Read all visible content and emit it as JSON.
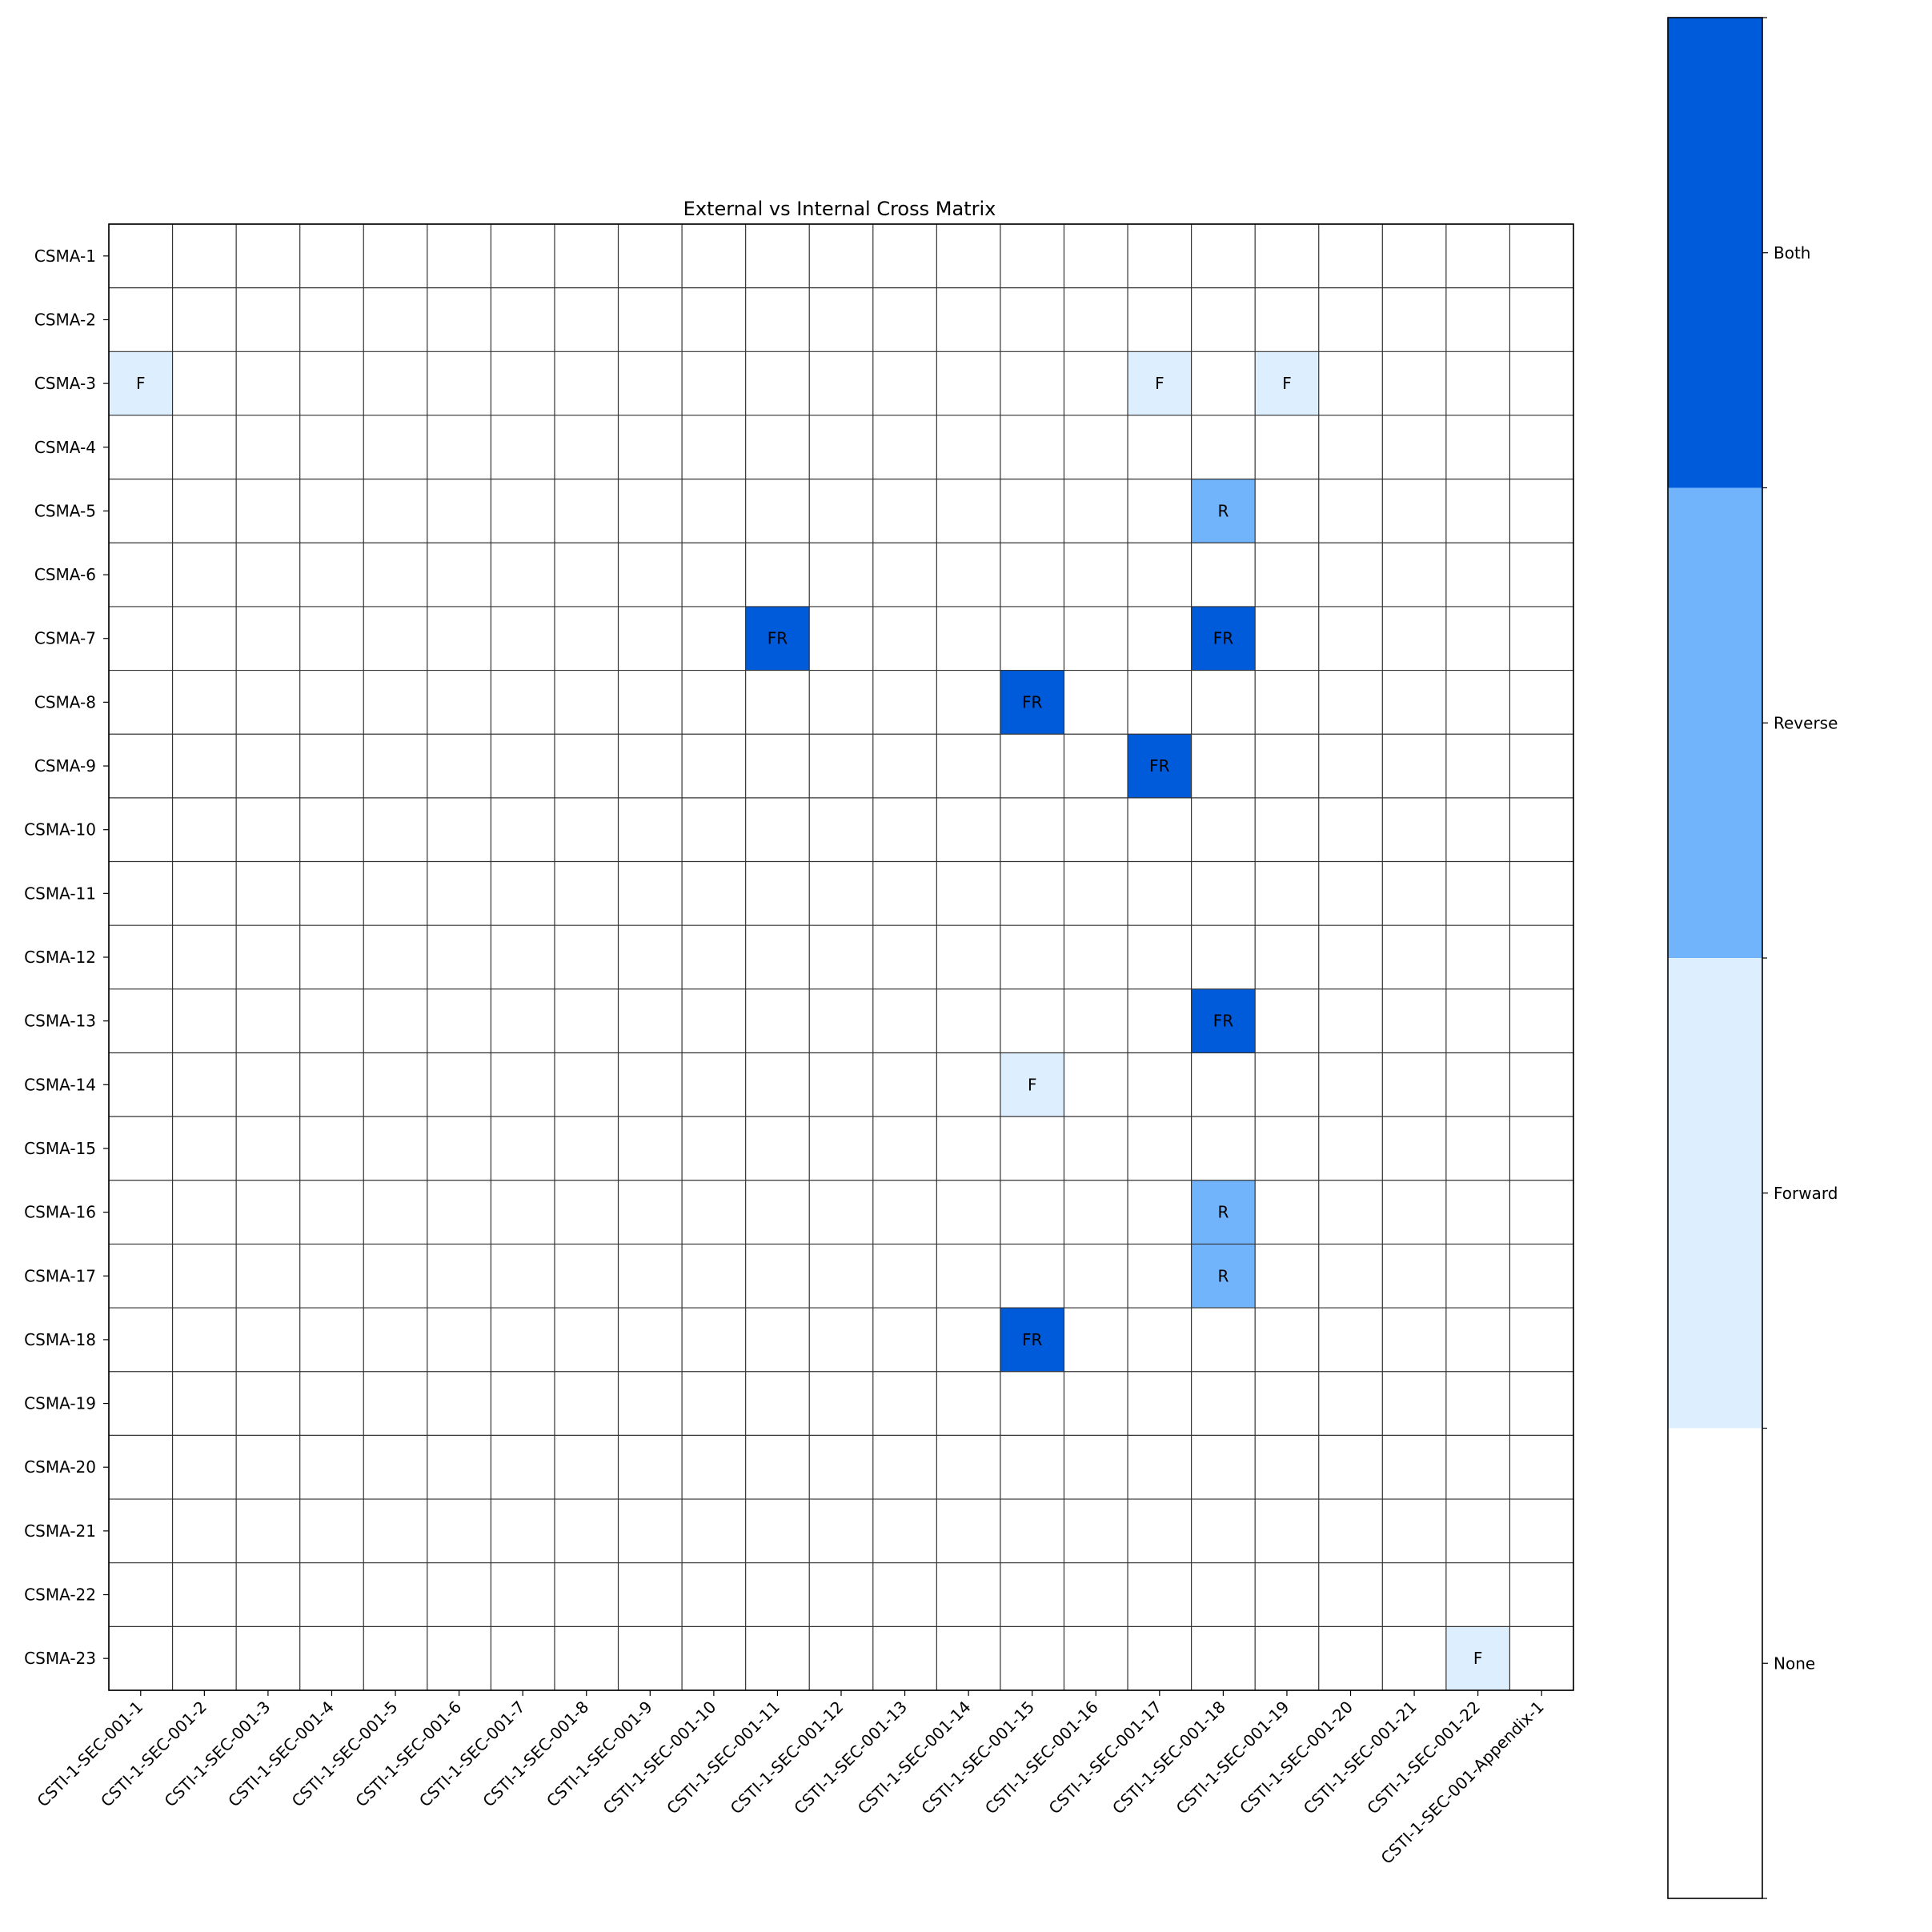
{
  "chart_data": {
    "type": "heatmap",
    "title": "External vs Internal Cross Matrix",
    "xlabel": "",
    "ylabel": "",
    "rows": [
      "CSMA-1",
      "CSMA-2",
      "CSMA-3",
      "CSMA-4",
      "CSMA-5",
      "CSMA-6",
      "CSMA-7",
      "CSMA-8",
      "CSMA-9",
      "CSMA-10",
      "CSMA-11",
      "CSMA-12",
      "CSMA-13",
      "CSMA-14",
      "CSMA-15",
      "CSMA-16",
      "CSMA-17",
      "CSMA-18",
      "CSMA-19",
      "CSMA-20",
      "CSMA-21",
      "CSMA-22",
      "CSMA-23"
    ],
    "columns": [
      "CSTI-1-SEC-001-1",
      "CSTI-1-SEC-001-2",
      "CSTI-1-SEC-001-3",
      "CSTI-1-SEC-001-4",
      "CSTI-1-SEC-001-5",
      "CSTI-1-SEC-001-6",
      "CSTI-1-SEC-001-7",
      "CSTI-1-SEC-001-8",
      "CSTI-1-SEC-001-9",
      "CSTI-1-SEC-001-10",
      "CSTI-1-SEC-001-11",
      "CSTI-1-SEC-001-12",
      "CSTI-1-SEC-001-13",
      "CSTI-1-SEC-001-14",
      "CSTI-1-SEC-001-15",
      "CSTI-1-SEC-001-16",
      "CSTI-1-SEC-001-17",
      "CSTI-1-SEC-001-18",
      "CSTI-1-SEC-001-19",
      "CSTI-1-SEC-001-20",
      "CSTI-1-SEC-001-21",
      "CSTI-1-SEC-001-22",
      "CSTI-1-SEC-001-Appendix-1"
    ],
    "cells": [
      {
        "row": "CSMA-3",
        "col": "CSTI-1-SEC-001-1",
        "value": 1,
        "label": "F"
      },
      {
        "row": "CSMA-3",
        "col": "CSTI-1-SEC-001-17",
        "value": 1,
        "label": "F"
      },
      {
        "row": "CSMA-3",
        "col": "CSTI-1-SEC-001-19",
        "value": 1,
        "label": "F"
      },
      {
        "row": "CSMA-5",
        "col": "CSTI-1-SEC-001-18",
        "value": 2,
        "label": "R"
      },
      {
        "row": "CSMA-7",
        "col": "CSTI-1-SEC-001-11",
        "value": 3,
        "label": "FR"
      },
      {
        "row": "CSMA-7",
        "col": "CSTI-1-SEC-001-18",
        "value": 3,
        "label": "FR"
      },
      {
        "row": "CSMA-8",
        "col": "CSTI-1-SEC-001-15",
        "value": 3,
        "label": "FR"
      },
      {
        "row": "CSMA-9",
        "col": "CSTI-1-SEC-001-17",
        "value": 3,
        "label": "FR"
      },
      {
        "row": "CSMA-13",
        "col": "CSTI-1-SEC-001-18",
        "value": 3,
        "label": "FR"
      },
      {
        "row": "CSMA-14",
        "col": "CSTI-1-SEC-001-15",
        "value": 1,
        "label": "F"
      },
      {
        "row": "CSMA-16",
        "col": "CSTI-1-SEC-001-18",
        "value": 2,
        "label": "R"
      },
      {
        "row": "CSMA-17",
        "col": "CSTI-1-SEC-001-18",
        "value": 2,
        "label": "R"
      },
      {
        "row": "CSMA-18",
        "col": "CSTI-1-SEC-001-15",
        "value": 3,
        "label": "FR"
      },
      {
        "row": "CSMA-23",
        "col": "CSTI-1-SEC-001-22",
        "value": 1,
        "label": "F"
      }
    ],
    "colorbar": {
      "levels": [
        {
          "value": 0,
          "label": "None",
          "color": "#ffffff"
        },
        {
          "value": 1,
          "label": "Forward",
          "color": "#ddeeff"
        },
        {
          "value": 2,
          "label": "Reverse",
          "color": "#72b4fc"
        },
        {
          "value": 3,
          "label": "Both",
          "color": "#005bdb"
        }
      ]
    },
    "grid": true,
    "legend": "colorbar-right"
  }
}
